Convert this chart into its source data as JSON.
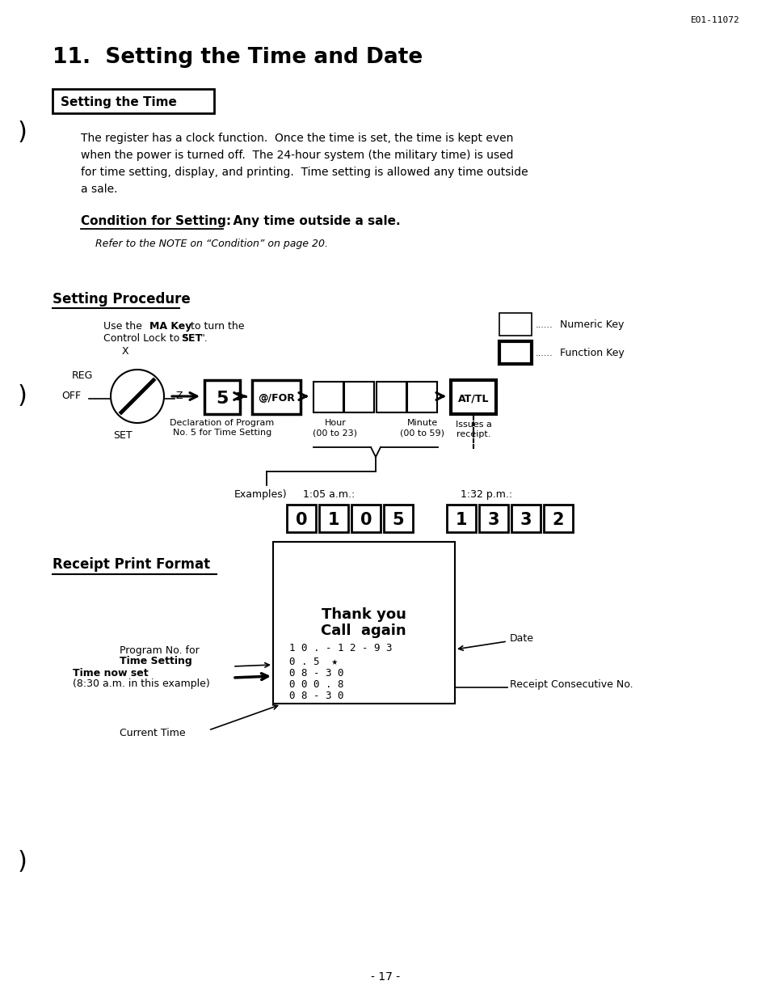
{
  "page_id": "EO1-11072",
  "title": "11.  Setting the Time and Date",
  "section1_header": "Setting the Time",
  "body_text": "The register has a clock function.  Once the time is set, the time is kept even\nwhen the power is turned off.  The 24-hour system (the military time) is used\nfor time setting, display, and printing.  Time setting is allowed any time outside\na sale.",
  "condition_label": "Condition for Setting:",
  "condition_value": "  Any time outside a sale.",
  "refer_text": "Refer to the NOTE on “Condition” on page 20.",
  "procedure_header": "Setting Procedure",
  "numeric_key_label": "Numeric Key",
  "function_key_label": "Function Key",
  "key5_label": "5",
  "atfor_label": "@/FOR",
  "attl_label": "AT/TL",
  "decl_label": "Declaration of Program\nNo. 5 for Time Setting",
  "hour_label": "Hour\n(00 to 23)",
  "minute_label": "Minute\n(00 to 59)",
  "issues_label": "Issues a\nreceipt.",
  "examples_label": "Examples)",
  "ex1_label": "1:05 a.m.:",
  "ex2_label": "1:32 p.m.:",
  "ex1_digits": [
    "0",
    "1",
    "0",
    "5"
  ],
  "ex2_digits": [
    "1",
    "3",
    "3",
    "2"
  ],
  "section2_header": "Receipt Print Format",
  "receipt_title1": "Thank you",
  "receipt_title2": "Call  again",
  "receipt_line1": "1 0 . - 1 2 - 9 3",
  "receipt_line2": "0 . 5  ★",
  "receipt_line3": "0 8 - 3 0",
  "receipt_line4": "0 0 0 . 8",
  "receipt_line5": "0 8 - 3 0",
  "prog_label_line1": "Program No. for",
  "prog_label_line2": "Time Setting",
  "time_now_label_line1": "Time now set",
  "time_now_label_line2": "(8:30 a.m. in this example)",
  "date_label": "Date",
  "consec_label": "Receipt Consecutive No.",
  "current_time_label": "Current Time",
  "page_num": "- 17 -",
  "bg_color": "#ffffff",
  "text_color": "#000000"
}
